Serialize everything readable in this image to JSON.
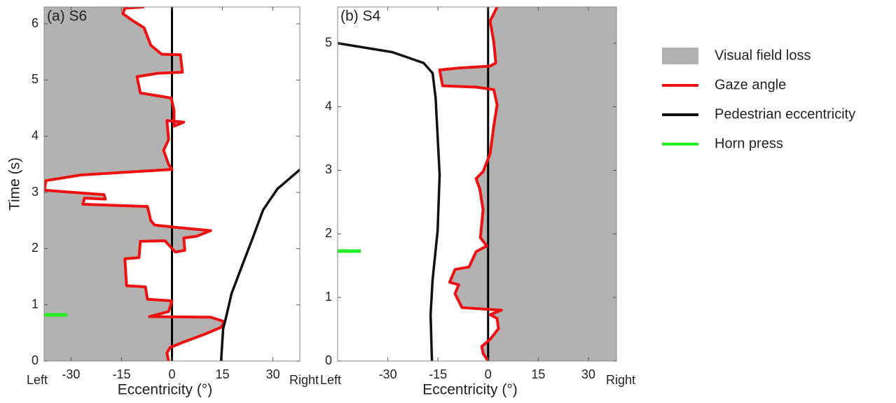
{
  "chart_data": [
    {
      "type": "line",
      "title": "(a) S6",
      "x_label": "Eccentricity (°)",
      "y_label": "Time (s)",
      "x_left_label": "Left",
      "x_right_label": "Right",
      "xlim": [
        -38,
        38
      ],
      "xticks": [
        -30,
        -15,
        0,
        15,
        30
      ],
      "ylim": [
        0,
        6.3
      ],
      "yticks": [
        0,
        1,
        2,
        3,
        4,
        5,
        6
      ],
      "field_loss_side": "left",
      "zero_line": true,
      "gaze": {
        "x": [
          -1,
          -1.5,
          -0.6,
          2.7,
          9.4,
          14.6,
          15.6,
          11.5,
          -6.7,
          -1,
          0,
          -7.3,
          -7.9,
          -13.5,
          -14,
          -9.8,
          -9.4,
          -2.1,
          1,
          3.8,
          3.5,
          7.3,
          11.5,
          1,
          -5.2,
          -6.3,
          -7.3,
          -26.5,
          -26,
          -19.8,
          -20.2,
          -37.9,
          -37.5,
          -27.1,
          0,
          -1,
          -2.5,
          -1,
          -1.5,
          3.5,
          0.6,
          0.6,
          -0.2,
          -9.4,
          -10.4,
          -4.2,
          3.1,
          2.5,
          -3.1,
          -6.3,
          -8.3,
          -11.5,
          -14.6,
          -14,
          -8.3
        ],
        "y": [
          0,
          0.14,
          0.24,
          0.32,
          0.47,
          0.6,
          0.7,
          0.78,
          0.79,
          0.88,
          1.07,
          1.1,
          1.32,
          1.34,
          1.82,
          1.84,
          2.13,
          2.14,
          1.94,
          1.97,
          2.19,
          2.22,
          2.32,
          2.38,
          2.42,
          2.5,
          2.75,
          2.79,
          2.9,
          2.88,
          2.96,
          3.04,
          3.21,
          3.31,
          3.41,
          3.5,
          3.75,
          3.94,
          4.28,
          4.25,
          4.18,
          4.46,
          4.68,
          4.77,
          5.06,
          5.12,
          5.14,
          5.45,
          5.46,
          5.62,
          5.93,
          6.05,
          6.18,
          6.28,
          6.3
        ]
      },
      "pedestrian": {
        "x": [
          14.6,
          15.2,
          16,
          17.7,
          20.8,
          24,
          27.1,
          31.3,
          38.1
        ],
        "y": [
          0,
          0.57,
          0.76,
          1.2,
          1.69,
          2.19,
          2.69,
          3.06,
          3.41
        ]
      },
      "horn_press": 0.82
    },
    {
      "type": "line",
      "title": "(b) S4",
      "x_label": "Eccentricity (°)",
      "x_left_label": "Left",
      "x_right_label": "Right",
      "xlim": [
        -45,
        38.4
      ],
      "xticks": [
        -30,
        -15,
        0,
        15,
        30
      ],
      "ylim": [
        0,
        5.57
      ],
      "yticks": [
        0,
        1,
        2,
        3,
        4,
        5
      ],
      "field_loss_side": "right",
      "zero_line": true,
      "gaze": {
        "x": [
          0,
          -1.5,
          -1.9,
          0.6,
          3.1,
          2.7,
          0.6,
          4,
          -7.8,
          -9.9,
          -8.8,
          -11.5,
          -9.9,
          -5.7,
          -3.6,
          -0.4,
          -2.3,
          -1.5,
          -2.5,
          -3.6,
          -1.5,
          0.6,
          1.7,
          2.7,
          1.7,
          -3.6,
          -13.6,
          -14.5,
          -8.8,
          0.6,
          2.3,
          1.7,
          0.6,
          2.7
        ],
        "y": [
          0,
          0.12,
          0.23,
          0.34,
          0.51,
          0.67,
          0.73,
          0.8,
          0.84,
          1.06,
          1.2,
          1.24,
          1.44,
          1.48,
          1.72,
          1.81,
          1.94,
          2.38,
          2.71,
          2.87,
          2.98,
          3.26,
          3.7,
          4.03,
          4.27,
          4.31,
          4.33,
          4.58,
          4.61,
          4.64,
          4.69,
          5.02,
          5.35,
          5.57
        ]
      },
      "pedestrian": {
        "x": [
          -16.8,
          -17.2,
          -16.6,
          -15.1,
          -14.5,
          -15.7,
          -16.6,
          -19.3,
          -28.7,
          -45
        ],
        "y": [
          0,
          0.73,
          1.28,
          2.05,
          2.93,
          4.14,
          4.53,
          4.69,
          4.86,
          5.0
        ]
      },
      "horn_press": 1.73
    }
  ],
  "legend": [
    {
      "name": "Visual field loss",
      "color": "#b2b2b2"
    },
    {
      "name": "Gaze angle",
      "color": "#ee1111"
    },
    {
      "name": "Pedestrian eccentricity",
      "color": "#111111"
    },
    {
      "name": "Horn press",
      "color": "#22ee22"
    }
  ]
}
